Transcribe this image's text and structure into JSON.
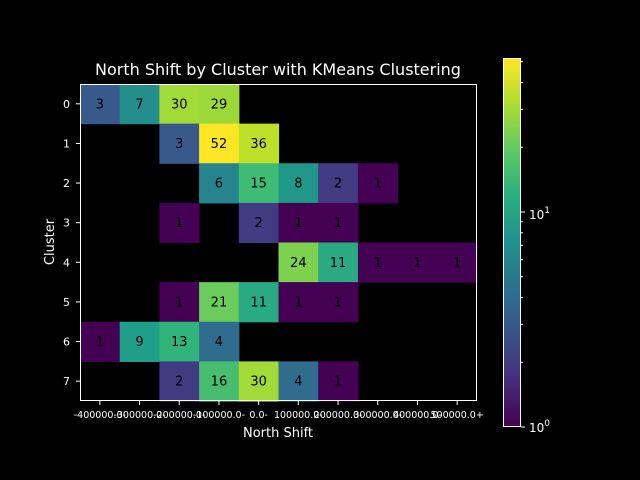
{
  "chart_data": {
    "type": "heatmap",
    "title": "North Shift by Cluster with KMeans Clustering",
    "xlabel": "North Shift",
    "ylabel": "Cluster",
    "x_tick_labels": [
      "-400000.0",
      "-300000.0",
      "-200000.0",
      "-100000.0",
      "0.0",
      "100000.0",
      "200000.0",
      "300000.0",
      "400000.0",
      "500000.0+"
    ],
    "x_tick_labels_rendered": [
      "-400000.0-",
      "-300000.0-",
      "-200000.0-",
      "-100000.0-",
      "0.0-",
      "100000.0-",
      "200000.0-",
      "300000.0-",
      "400000.0-",
      "500000.0+"
    ],
    "y_categories": [
      "0",
      "1",
      "2",
      "3",
      "4",
      "5",
      "6",
      "7"
    ],
    "colorbar": {
      "scale": "log",
      "colormap": "viridis",
      "range": [
        1,
        52
      ],
      "tick_labels": [
        {
          "base": "10",
          "exp": "0",
          "value": 1
        },
        {
          "base": "10",
          "exp": "1",
          "value": 10
        }
      ]
    },
    "values": [
      [
        3,
        7,
        30,
        29,
        null,
        null,
        null,
        null,
        null,
        null
      ],
      [
        null,
        null,
        3,
        52,
        36,
        null,
        null,
        null,
        null,
        null
      ],
      [
        null,
        null,
        null,
        6,
        15,
        8,
        2,
        1,
        null,
        null
      ],
      [
        null,
        null,
        1,
        null,
        2,
        1,
        1,
        null,
        null,
        null
      ],
      [
        null,
        null,
        null,
        null,
        null,
        24,
        11,
        1,
        1,
        1
      ],
      [
        null,
        null,
        1,
        21,
        11,
        1,
        1,
        null,
        null,
        null
      ],
      [
        1,
        9,
        13,
        4,
        null,
        null,
        null,
        null,
        null,
        null
      ],
      [
        null,
        null,
        2,
        16,
        30,
        4,
        1,
        null,
        null,
        null
      ]
    ]
  }
}
